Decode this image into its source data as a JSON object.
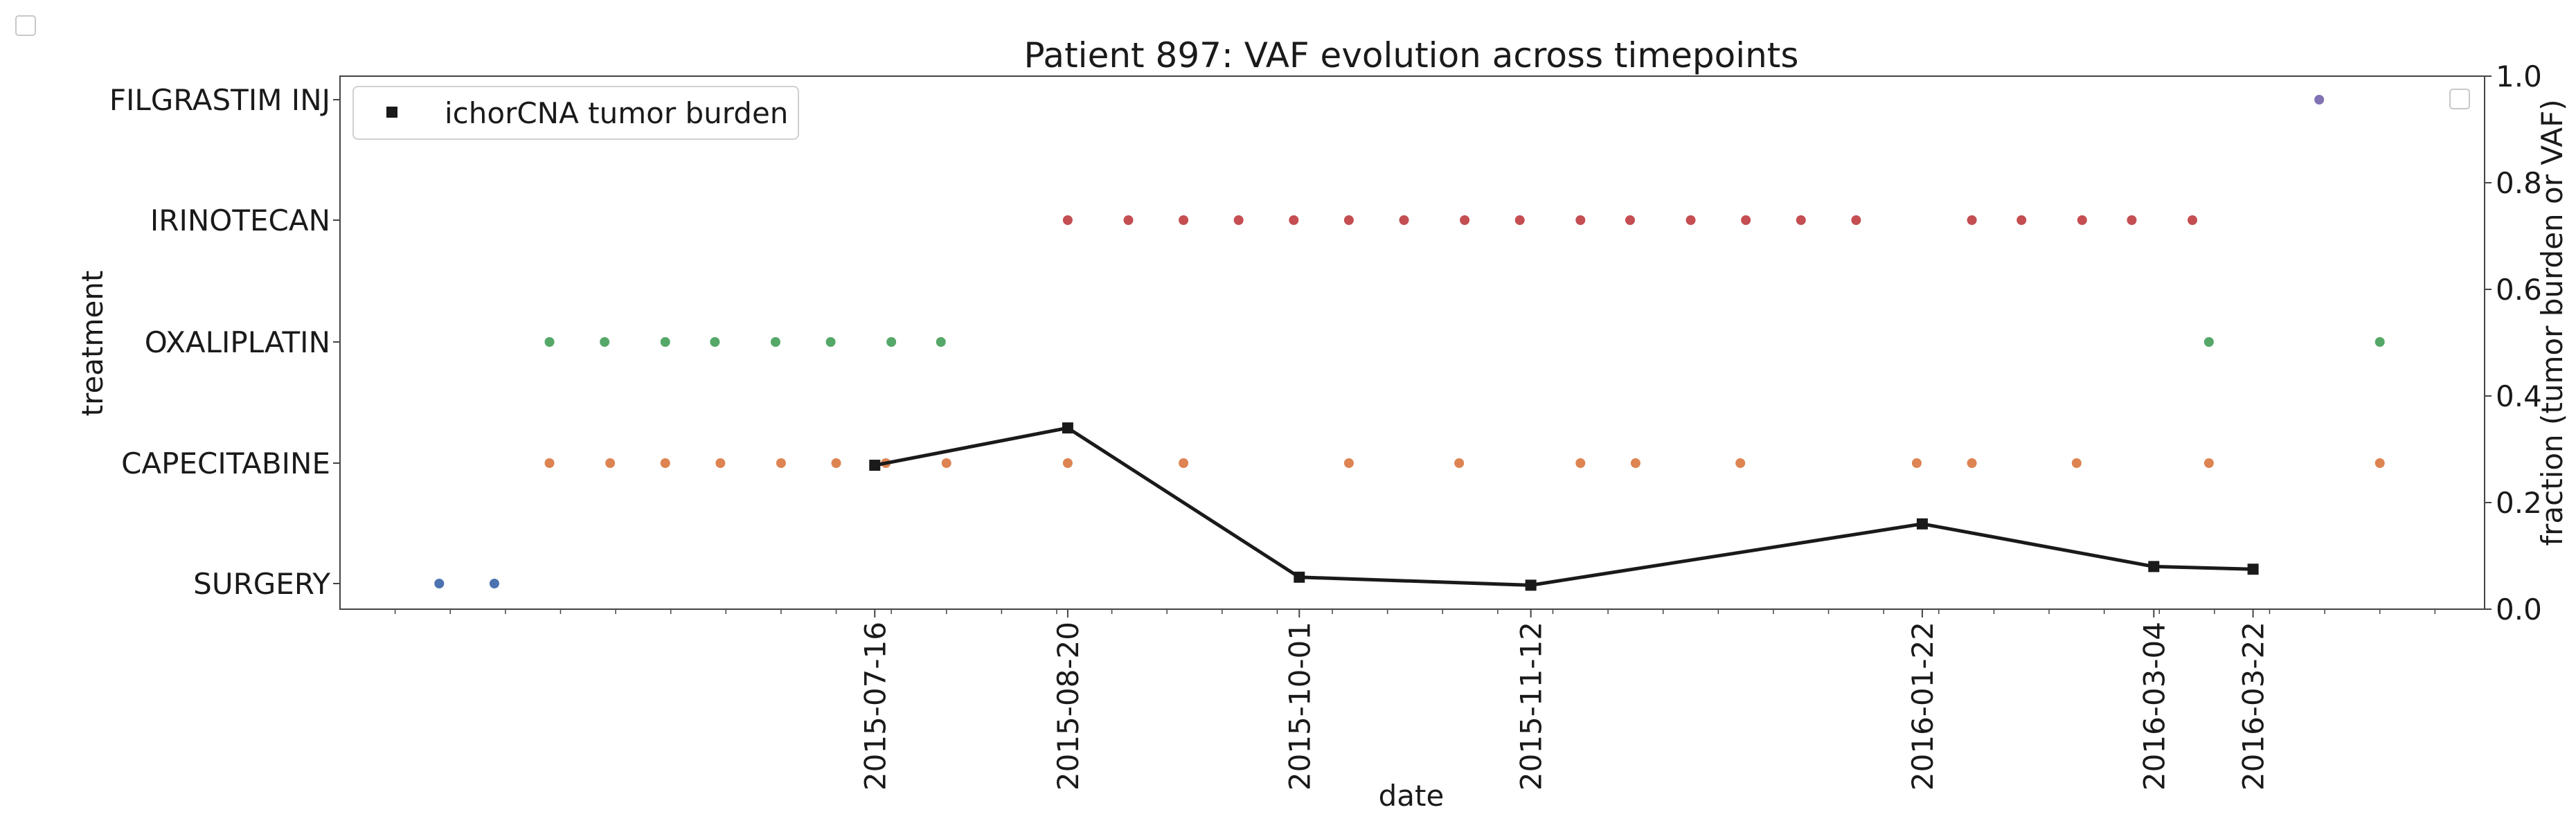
{
  "chart_data": {
    "type": "scatter",
    "title": "Patient 897: VAF evolution across timepoints",
    "xlabel": "date",
    "ylabel_left": "treatment",
    "ylabel_right": "fraction (tumor burden or VAF)",
    "xlim": [
      "2015-04-10",
      "2016-05-03"
    ],
    "x_ticks": [
      "2015-07-16",
      "2015-08-20",
      "2015-10-01",
      "2015-11-12",
      "2016-01-22",
      "2016-03-04",
      "2016-03-22"
    ],
    "y_categories": [
      "SURGERY",
      "CAPECITABINE",
      "OXALIPLATIN",
      "IRINOTECAN",
      "FILGRASTIM INJ"
    ],
    "ylim_right": [
      0,
      1
    ],
    "y_ticks_right": [
      "0.0",
      "0.2",
      "0.4",
      "0.6",
      "0.8",
      "1.0"
    ],
    "legend": {
      "label": "ichorCNA tumor burden",
      "placement": "top-left"
    },
    "colors": {
      "SURGERY": "#4c72b0",
      "CAPECITABINE": "#dd8452",
      "OXALIPLATIN": "#55a868",
      "IRINOTECAN": "#c44e52",
      "FILGRASTIM INJ": "#8172b3",
      "tumor_burden": "#1a1a1a"
    },
    "treatments": [
      {
        "name": "SURGERY",
        "dates": [
          "2015-04-28",
          "2015-05-08"
        ]
      },
      {
        "name": "CAPECITABINE",
        "dates": [
          "2015-05-18",
          "2015-05-29",
          "2015-06-08",
          "2015-06-18",
          "2015-06-29",
          "2015-07-09",
          "2015-07-18",
          "2015-07-29",
          "2015-08-20",
          "2015-09-10",
          "2015-10-10",
          "2015-10-30",
          "2015-11-21",
          "2015-12-01",
          "2015-12-20",
          "2016-01-21",
          "2016-01-31",
          "2016-02-19",
          "2016-03-14",
          "2016-04-14"
        ]
      },
      {
        "name": "OXALIPLATIN",
        "dates": [
          "2015-05-18",
          "2015-05-28",
          "2015-06-08",
          "2015-06-17",
          "2015-06-28",
          "2015-07-08",
          "2015-07-19",
          "2015-07-28",
          "2016-03-14",
          "2016-04-14"
        ]
      },
      {
        "name": "IRINOTECAN",
        "dates": [
          "2015-08-20",
          "2015-08-31",
          "2015-09-10",
          "2015-09-20",
          "2015-09-30",
          "2015-10-10",
          "2015-10-20",
          "2015-10-31",
          "2015-11-10",
          "2015-11-21",
          "2015-11-30",
          "2015-12-11",
          "2015-12-21",
          "2015-12-31",
          "2016-01-10",
          "2016-01-31",
          "2016-02-09",
          "2016-02-20",
          "2016-02-29",
          "2016-03-11"
        ]
      },
      {
        "name": "FILGRASTIM INJ",
        "dates": [
          "2016-04-03"
        ]
      }
    ],
    "series": [
      {
        "name": "ichorCNA tumor burden",
        "x": [
          "2015-07-16",
          "2015-08-20",
          "2015-10-01",
          "2015-11-12",
          "2016-01-22",
          "2016-03-04",
          "2016-03-22"
        ],
        "y": [
          0.27,
          0.34,
          0.06,
          0.045,
          0.16,
          0.08,
          0.075
        ]
      }
    ]
  }
}
